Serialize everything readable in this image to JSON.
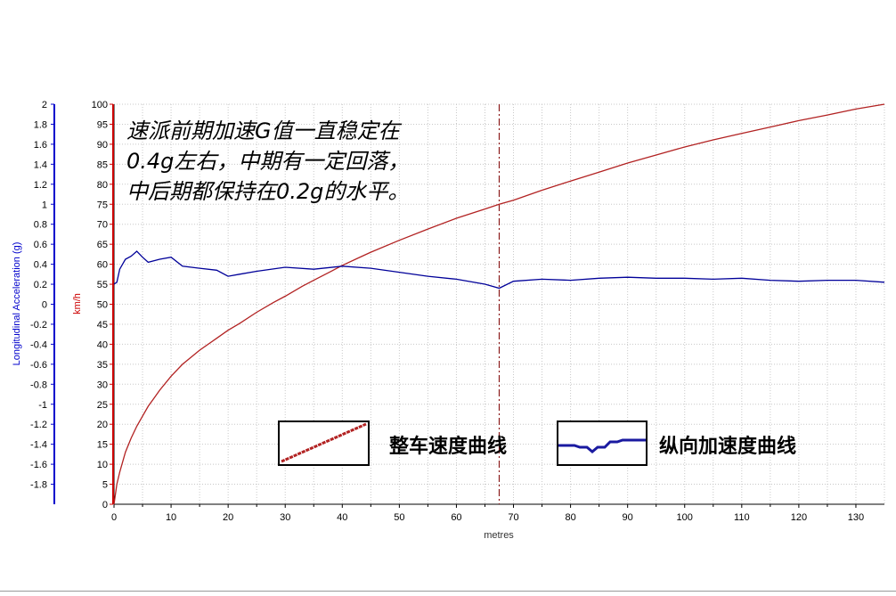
{
  "chart_data": {
    "type": "line",
    "title": "",
    "xlabel": "metres",
    "xlim": [
      0,
      135
    ],
    "x_ticks": [
      0,
      10,
      20,
      30,
      40,
      50,
      60,
      70,
      80,
      90,
      100,
      110,
      120,
      130
    ],
    "grid": true,
    "left_axis": {
      "label": "Longitudinal Acceleration (g)",
      "color": "#0000cc",
      "ylim": [
        -2,
        2
      ],
      "ticks": [
        "2",
        "1.8",
        "1.6",
        "1.4",
        "1.2",
        "1",
        "0.8",
        "0.6",
        "0.4",
        "0.2",
        "0",
        "-0.2",
        "-0.4",
        "-0.6",
        "-0.8",
        "-1",
        "-1.2",
        "-1.4",
        "-1.6",
        "-1.8"
      ]
    },
    "right_axis": {
      "label": "km/h",
      "color": "#cc0000",
      "ylim": [
        0,
        100
      ],
      "ticks": [
        "100",
        "95",
        "90",
        "85",
        "80",
        "75",
        "70",
        "65",
        "60",
        "55",
        "50",
        "45",
        "40",
        "35",
        "30",
        "25",
        "20",
        "15",
        "10",
        "5",
        "0"
      ]
    },
    "marker_x": 67.5,
    "series": [
      {
        "name": "整车速度曲线",
        "axis": "right",
        "color": "#b22222",
        "x": [
          0,
          0.5,
          1,
          2,
          3,
          4,
          5,
          6,
          7,
          8,
          10,
          12,
          15,
          18,
          20,
          22,
          25,
          28,
          30,
          33,
          35,
          38,
          40,
          43,
          45,
          50,
          55,
          60,
          65,
          67.5,
          70,
          75,
          80,
          85,
          90,
          95,
          100,
          105,
          110,
          115,
          120,
          125,
          130,
          135
        ],
        "values": [
          0,
          5,
          8,
          13,
          16.5,
          19.5,
          22,
          24.5,
          26.5,
          28.5,
          32,
          35,
          38.5,
          41.5,
          43.5,
          45.2,
          48,
          50.5,
          52,
          54.5,
          56,
          58.2,
          59.7,
          61.7,
          63,
          66,
          68.8,
          71.5,
          73.8,
          75,
          76,
          78.5,
          80.8,
          83,
          85.3,
          87.3,
          89.3,
          91.1,
          92.7,
          94.3,
          95.9,
          97.3,
          98.8,
          100
        ]
      },
      {
        "name": "纵向加速度曲线",
        "axis": "left",
        "color": "#000099",
        "x": [
          0,
          0.5,
          1,
          2,
          3,
          4,
          5,
          6,
          8,
          10,
          12,
          15,
          18,
          20,
          22,
          25,
          30,
          35,
          40,
          45,
          50,
          55,
          60,
          65,
          67.5,
          70,
          75,
          80,
          85,
          90,
          95,
          100,
          105,
          110,
          115,
          120,
          125,
          130,
          135
        ],
        "values": [
          0.2,
          0.22,
          0.35,
          0.45,
          0.48,
          0.53,
          0.47,
          0.42,
          0.45,
          0.47,
          0.38,
          0.36,
          0.34,
          0.28,
          0.3,
          0.33,
          0.37,
          0.35,
          0.38,
          0.36,
          0.32,
          0.28,
          0.25,
          0.2,
          0.16,
          0.23,
          0.25,
          0.24,
          0.26,
          0.27,
          0.26,
          0.26,
          0.25,
          0.26,
          0.24,
          0.23,
          0.24,
          0.24,
          0.22
        ]
      }
    ],
    "annotation": [
      "速派前期加速G值一直稳定在",
      "0.4g左右，中期有一定回落，",
      "中后期都保持在0.2g的水平。"
    ]
  }
}
